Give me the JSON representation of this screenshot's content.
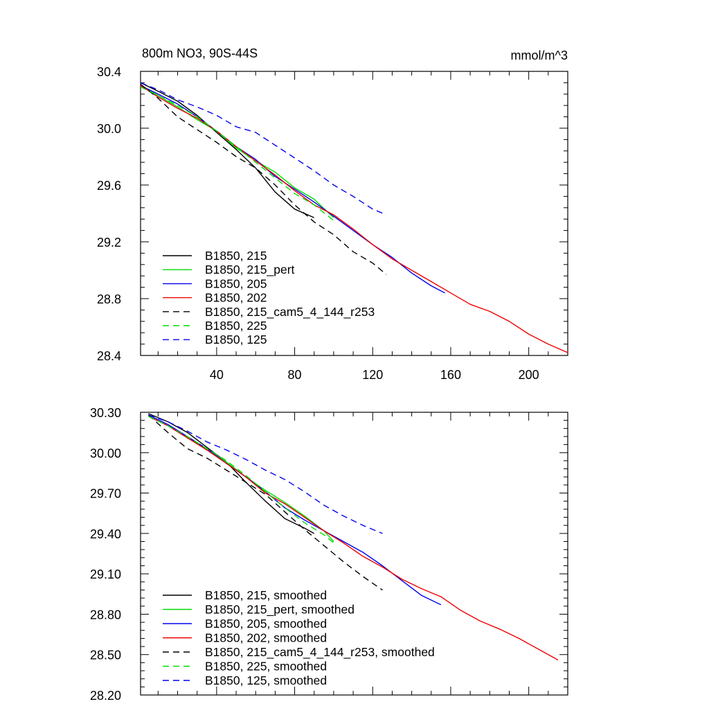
{
  "colors": {
    "black": "#000000",
    "green": "#00dd00",
    "blue": "#0000ee",
    "red": "#ee0000"
  },
  "chart_data": [
    {
      "type": "line",
      "title": "800m NO3, 90S-44S",
      "units": "mmol/m^3",
      "xlabel": "",
      "ylabel": "",
      "xlim": [
        1,
        220
      ],
      "ylim": [
        28.4,
        30.4
      ],
      "xticks": [
        40,
        80,
        120,
        160,
        200
      ],
      "yticks": [
        28.4,
        28.8,
        29.2,
        29.6,
        30.0,
        30.4
      ],
      "ytick_labels": [
        "28.4",
        "28.8",
        "29.2",
        "29.6",
        "30.0",
        "30.4"
      ],
      "legend_position": "bottom-left",
      "series": [
        {
          "name": "B1850, 215",
          "color": "#000000",
          "dash": false,
          "x": [
            1,
            10,
            20,
            30,
            40,
            50,
            60,
            70,
            80,
            90
          ],
          "y": [
            30.32,
            30.26,
            30.19,
            30.09,
            29.97,
            29.85,
            29.72,
            29.55,
            29.43,
            29.37
          ]
        },
        {
          "name": "B1850, 215_pert",
          "color": "#00dd00",
          "dash": false,
          "x": [
            1,
            10,
            20,
            30,
            40,
            50,
            60,
            70,
            80,
            90,
            100
          ],
          "y": [
            30.3,
            30.23,
            30.15,
            30.06,
            29.98,
            29.86,
            29.77,
            29.69,
            29.58,
            29.5,
            29.37
          ]
        },
        {
          "name": "B1850, 205",
          "color": "#0000ee",
          "dash": false,
          "x": [
            1,
            10,
            20,
            30,
            40,
            50,
            60,
            70,
            80,
            90,
            100,
            110,
            120,
            130,
            140,
            150,
            157
          ],
          "y": [
            30.3,
            30.24,
            30.17,
            30.08,
            29.98,
            29.87,
            29.78,
            29.66,
            29.57,
            29.48,
            29.38,
            29.28,
            29.18,
            29.09,
            28.98,
            28.89,
            28.84
          ]
        },
        {
          "name": "B1850, 202",
          "color": "#ee0000",
          "dash": false,
          "x": [
            1,
            10,
            20,
            30,
            40,
            50,
            60,
            70,
            80,
            90,
            100,
            110,
            120,
            130,
            140,
            150,
            160,
            170,
            180,
            190,
            200,
            210,
            220
          ],
          "y": [
            30.3,
            30.22,
            30.14,
            30.07,
            29.98,
            29.87,
            29.77,
            29.67,
            29.56,
            29.46,
            29.39,
            29.29,
            29.18,
            29.08,
            29.0,
            28.92,
            28.84,
            28.76,
            28.71,
            28.64,
            28.55,
            28.48,
            28.42
          ]
        },
        {
          "name": "B1850, 215_cam5_4_144_r253",
          "color": "#000000",
          "dash": true,
          "x": [
            1,
            10,
            20,
            30,
            40,
            50,
            60,
            70,
            80,
            90,
            100,
            110,
            120,
            127
          ],
          "y": [
            30.31,
            30.21,
            30.08,
            29.99,
            29.9,
            29.8,
            29.72,
            29.6,
            29.46,
            29.34,
            29.25,
            29.13,
            29.05,
            28.97
          ]
        },
        {
          "name": "B1850, 225",
          "color": "#00dd00",
          "dash": true,
          "x": [
            1,
            10,
            20,
            30,
            40,
            50,
            60,
            70,
            80,
            90,
            100
          ],
          "y": [
            30.29,
            30.23,
            30.16,
            30.08,
            29.98,
            29.87,
            29.76,
            29.65,
            29.54,
            29.46,
            29.35
          ]
        },
        {
          "name": "B1850, 125",
          "color": "#0000ee",
          "dash": true,
          "x": [
            1,
            10,
            20,
            30,
            40,
            50,
            60,
            70,
            80,
            90,
            100,
            110,
            120,
            127
          ],
          "y": [
            30.32,
            30.27,
            30.2,
            30.15,
            30.09,
            30.01,
            29.97,
            29.88,
            29.79,
            29.7,
            29.6,
            29.52,
            29.43,
            29.39
          ]
        }
      ]
    },
    {
      "type": "line",
      "title": "",
      "xlabel": "",
      "ylabel": "",
      "xlim": [
        1,
        220
      ],
      "ylim": [
        28.2,
        30.3
      ],
      "xticks": [
        40,
        80,
        120,
        160,
        200
      ],
      "yticks": [
        28.2,
        28.5,
        28.8,
        29.1,
        29.4,
        29.7,
        30.0,
        30.3
      ],
      "ytick_labels": [
        "28.20",
        "28.50",
        "28.80",
        "29.10",
        "29.40",
        "29.70",
        "30.00",
        "30.30"
      ],
      "legend_position": "bottom-left",
      "series": [
        {
          "name": "B1850, 215, smoothed",
          "color": "#000000",
          "dash": false,
          "x": [
            5,
            15,
            25,
            35,
            45,
            55,
            65,
            75,
            85,
            90
          ],
          "y": [
            30.29,
            30.23,
            30.15,
            30.04,
            29.93,
            29.78,
            29.64,
            29.51,
            29.44,
            29.4
          ]
        },
        {
          "name": "B1850, 215_pert, smoothed",
          "color": "#00dd00",
          "dash": false,
          "x": [
            5,
            15,
            25,
            35,
            45,
            55,
            65,
            75,
            85,
            95,
            100
          ],
          "y": [
            30.27,
            30.2,
            30.11,
            30.03,
            29.93,
            29.82,
            29.72,
            29.63,
            29.53,
            29.42,
            29.34
          ]
        },
        {
          "name": "B1850, 205, smoothed",
          "color": "#0000ee",
          "dash": false,
          "x": [
            5,
            15,
            25,
            35,
            45,
            55,
            65,
            75,
            85,
            95,
            105,
            115,
            125,
            135,
            145,
            155
          ],
          "y": [
            30.28,
            30.21,
            30.12,
            30.03,
            29.92,
            29.82,
            29.71,
            29.59,
            29.5,
            29.42,
            29.34,
            29.26,
            29.16,
            29.05,
            28.94,
            28.87
          ]
        },
        {
          "name": "B1850, 202, smoothed",
          "color": "#ee0000",
          "dash": false,
          "x": [
            5,
            15,
            25,
            35,
            45,
            55,
            65,
            75,
            85,
            95,
            105,
            115,
            125,
            135,
            145,
            155,
            165,
            175,
            185,
            195,
            205,
            215
          ],
          "y": [
            30.27,
            30.2,
            30.11,
            30.02,
            29.92,
            29.82,
            29.7,
            29.62,
            29.52,
            29.42,
            29.33,
            29.23,
            29.15,
            29.06,
            28.99,
            28.93,
            28.83,
            28.75,
            28.69,
            28.62,
            28.54,
            28.46
          ]
        },
        {
          "name": "B1850, 215_cam5_4_144_r253, smoothed",
          "color": "#000000",
          "dash": true,
          "x": [
            5,
            15,
            25,
            35,
            45,
            55,
            65,
            75,
            85,
            95,
            105,
            115,
            125
          ],
          "y": [
            30.28,
            30.15,
            30.03,
            29.96,
            29.87,
            29.78,
            29.69,
            29.56,
            29.43,
            29.31,
            29.19,
            29.08,
            28.98
          ]
        },
        {
          "name": "B1850, 225, smoothed",
          "color": "#00dd00",
          "dash": true,
          "x": [
            5,
            15,
            25,
            35,
            45,
            55,
            65,
            75,
            85,
            95,
            100
          ],
          "y": [
            30.27,
            30.2,
            30.12,
            30.03,
            29.94,
            29.83,
            29.71,
            29.59,
            29.48,
            29.39,
            29.33
          ]
        },
        {
          "name": "B1850, 125, smoothed",
          "color": "#0000ee",
          "dash": true,
          "x": [
            5,
            15,
            25,
            35,
            45,
            55,
            65,
            75,
            85,
            95,
            105,
            115,
            125
          ],
          "y": [
            30.28,
            30.23,
            30.16,
            30.08,
            30.02,
            29.95,
            29.87,
            29.8,
            29.71,
            29.61,
            29.53,
            29.46,
            29.4
          ]
        }
      ]
    }
  ]
}
